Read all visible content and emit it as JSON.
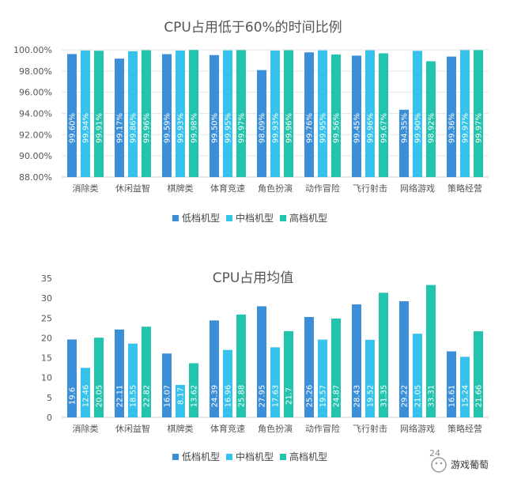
{
  "colors": {
    "low": "#3b8fd9",
    "mid": "#36c2ea",
    "high": "#23c4ad",
    "grid": "#e6e6e6",
    "axis": "#cccccc"
  },
  "chart_data": [
    {
      "type": "bar",
      "title": "CPU占用低于60%的时间比例",
      "categories": [
        "消除类",
        "休闲益智",
        "棋牌类",
        "体育竞速",
        "角色扮演",
        "动作冒险",
        "飞行射击",
        "网络游戏",
        "策略经营"
      ],
      "series": [
        {
          "name": "低档机型",
          "values": [
            99.6,
            99.17,
            99.59,
            99.5,
            98.09,
            99.76,
            99.45,
            94.35,
            99.36
          ],
          "labels": [
            "99.60%",
            "99.17%",
            "99.59%",
            "99.50%",
            "98.09%",
            "99.76%",
            "99.45%",
            "94.35%",
            "99.36%"
          ]
        },
        {
          "name": "中档机型",
          "values": [
            99.94,
            99.86,
            99.93,
            99.95,
            99.93,
            99.95,
            99.96,
            99.9,
            99.97
          ],
          "labels": [
            "99.94%",
            "99.86%",
            "99.93%",
            "99.95%",
            "99.93%",
            "99.95%",
            "99.96%",
            "99.90%",
            "99.97%"
          ]
        },
        {
          "name": "高档机型",
          "values": [
            99.91,
            99.96,
            99.98,
            99.97,
            99.96,
            99.56,
            99.67,
            98.92,
            99.97
          ],
          "labels": [
            "99.91%",
            "99.96%",
            "99.98%",
            "99.97%",
            "99.96%",
            "99.56%",
            "99.67%",
            "98.92%",
            "99.97%"
          ]
        }
      ],
      "ylim": [
        88,
        100
      ],
      "yticks": [
        "88.00%",
        "90.00%",
        "92.00%",
        "94.00%",
        "96.00%",
        "98.00%",
        "100.00%"
      ],
      "ytick_values": [
        88,
        90,
        92,
        94,
        96,
        98,
        100
      ],
      "grid": true,
      "legend": "bottom"
    },
    {
      "type": "bar",
      "title": "CPU占用均值",
      "categories": [
        "消除类",
        "休闲益智",
        "棋牌类",
        "体育竞速",
        "角色扮演",
        "动作冒险",
        "飞行射击",
        "网络游戏",
        "策略经营"
      ],
      "series": [
        {
          "name": "低档机型",
          "values": [
            19.6,
            22.11,
            16.07,
            24.39,
            27.95,
            25.26,
            28.43,
            29.22,
            16.61
          ],
          "labels": [
            "19.6",
            "22.11",
            "16.07",
            "24.39",
            "27.95",
            "25.26",
            "28.43",
            "29.22",
            "16.61"
          ]
        },
        {
          "name": "中档机型",
          "values": [
            12.46,
            18.55,
            8.17,
            16.96,
            17.63,
            19.57,
            19.52,
            21.05,
            15.24
          ],
          "labels": [
            "12.46",
            "18.55",
            "8.17",
            "16.96",
            "17.63",
            "19.57",
            "19.52",
            "21.05",
            "15.24"
          ]
        },
        {
          "name": "高档机型",
          "values": [
            20.05,
            22.82,
            13.62,
            25.88,
            21.7,
            24.87,
            31.35,
            33.31,
            21.66
          ],
          "labels": [
            "20.05",
            "22.82",
            "13.62",
            "25.88",
            "21.7",
            "24.87",
            "31.35",
            "33.31",
            "21.66"
          ]
        }
      ],
      "ylim": [
        0,
        35
      ],
      "yticks": [
        "0",
        "5",
        "10",
        "15",
        "20",
        "25",
        "30",
        "35"
      ],
      "ytick_values": [
        0,
        5,
        10,
        15,
        20,
        25,
        30,
        35
      ],
      "grid": false,
      "legend": "bottom"
    }
  ],
  "footer": {
    "page_number": "24",
    "brand": "游戏葡萄"
  }
}
